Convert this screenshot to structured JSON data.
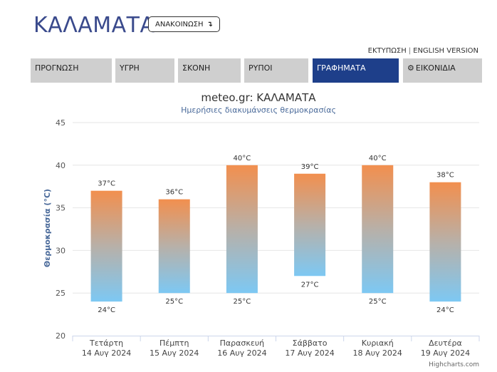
{
  "header": {
    "city": "ΚΑΛΑΜΑΤΑ",
    "announcement_label": "ΑΝΑΚΟΙΝΩΣΗ",
    "announcement_icon": "arrow-down-icon",
    "links": [
      "ΕΚΤΥΠΩΣΗ",
      "ENGLISH VERSION"
    ]
  },
  "tabs": [
    {
      "label": "ΠΡΟΓΝΩΣΗ",
      "active": false
    },
    {
      "label": "ΥΓΡΗ",
      "active": false
    },
    {
      "label": "ΣΚΟΝΗ",
      "active": false
    },
    {
      "label": "ΡΥΠΟΙ",
      "active": false
    },
    {
      "label": "ΓΡΑΦΗΜΑΤΑ",
      "active": true
    },
    {
      "label": "ΕΙΚΟΝΙΔΙΑ",
      "active": false,
      "icon": "gear-icon"
    }
  ],
  "colors": {
    "tab_active": "#1e3f8a",
    "tab": "#cfcfcf",
    "bar_top": "#f28f4e",
    "bar_bottom": "#7dc8f3"
  },
  "chart_data": {
    "type": "bar",
    "title": "meteo.gr: ΚΑΛΑΜΑΤΑ",
    "subtitle": "Ημερήσιες διακυμάνσεις θερμοκρασίας",
    "ylabel": "Θερμοκρασία (°C)",
    "xlabel": "",
    "ylim": [
      20,
      45
    ],
    "yticks": [
      20,
      25,
      30,
      35,
      40,
      45
    ],
    "grid": true,
    "categories": [
      [
        "Τετάρτη",
        "14 Αυγ 2024"
      ],
      [
        "Πέμπτη",
        "15 Αυγ 2024"
      ],
      [
        "Παρασκευή",
        "16 Αυγ 2024"
      ],
      [
        "Σάββατο",
        "17 Αυγ 2024"
      ],
      [
        "Κυριακή",
        "18 Αυγ 2024"
      ],
      [
        "Δευτέρα",
        "19 Αυγ 2024"
      ]
    ],
    "max": [
      37,
      36,
      40,
      39,
      40,
      38
    ],
    "min": [
      24,
      25,
      25,
      27,
      25,
      24
    ],
    "max_labels": [
      "37°C",
      "36°C",
      "40°C",
      "39°C",
      "40°C",
      "38°C"
    ],
    "min_labels": [
      "24°C",
      "25°C",
      "25°C",
      "27°C",
      "25°C",
      "24°C"
    ],
    "credit": "Highcharts.com"
  }
}
